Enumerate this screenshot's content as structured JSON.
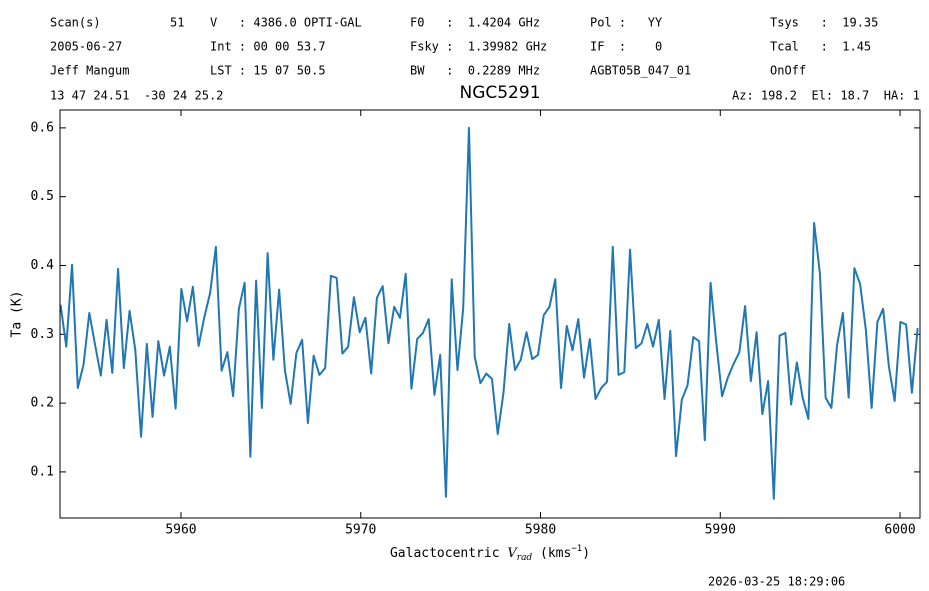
{
  "header": {
    "columns": [
      [
        "Scan(s)",
        "2005-06-27",
        "Jeff Mangum",
        "13 47 24.51  -30 24 25.2"
      ],
      [
        "51"
      ],
      [
        "V   : 4386.0 OPTI-GAL",
        "Int : 00 00 53.7",
        "LST : 15 07 50.5"
      ],
      [
        "F0   :  1.4204 GHz",
        "Fsky :  1.39982 GHz",
        "BW   :  0.2289 MHz"
      ],
      [
        "Pol :   YY",
        "IF  :    0",
        "AGBT05B_047_01"
      ],
      [
        "Tsys   :  19.35",
        "Tcal   :  1.45",
        "OnOff"
      ]
    ],
    "right": "Az: 198.2  El: 18.7  HA: 1"
  },
  "footer": {
    "timestamp": "2026-03-25 18:29:06"
  },
  "chart_data": {
    "type": "line",
    "title": "NGC5291",
    "xlabel": [
      "Galactocentric ",
      "V",
      "rad",
      " (kms",
      "−1",
      ")"
    ],
    "ylabel": "Ta (K)",
    "xlim": [
      5953.27,
      6001.11
    ],
    "ylim": [
      0.033,
      0.626
    ],
    "xticks": [
      5960,
      5970,
      5980,
      5990,
      6000
    ],
    "yticks": [
      0.1,
      0.2,
      0.3,
      0.4,
      0.5,
      0.6
    ],
    "grid": false,
    "series": [
      {
        "color": "#1f77b4",
        "x": [
          5953.3,
          5953.62,
          5953.94,
          5954.26,
          5954.58,
          5954.9,
          5955.22,
          5955.54,
          5955.86,
          5956.18,
          5956.5,
          5956.82,
          5957.14,
          5957.46,
          5957.78,
          5958.1,
          5958.42,
          5958.74,
          5959.06,
          5959.38,
          5959.7,
          5960.02,
          5960.34,
          5960.66,
          5960.98,
          5961.3,
          5961.62,
          5961.94,
          5962.26,
          5962.58,
          5962.9,
          5963.22,
          5963.54,
          5963.86,
          5964.18,
          5964.5,
          5964.82,
          5965.14,
          5965.46,
          5965.78,
          5966.1,
          5966.42,
          5966.74,
          5967.06,
          5967.38,
          5967.7,
          5968.02,
          5968.34,
          5968.66,
          5968.98,
          5969.3,
          5969.62,
          5969.94,
          5970.26,
          5970.58,
          5970.9,
          5971.22,
          5971.54,
          5971.86,
          5972.18,
          5972.5,
          5972.82,
          5973.14,
          5973.46,
          5973.78,
          5974.1,
          5974.42,
          5974.74,
          5975.06,
          5975.38,
          5975.7,
          5976.02,
          5976.34,
          5976.66,
          5976.98,
          5977.3,
          5977.62,
          5977.94,
          5978.26,
          5978.58,
          5978.9,
          5979.22,
          5979.54,
          5979.86,
          5980.18,
          5980.5,
          5980.82,
          5981.14,
          5981.46,
          5981.78,
          5982.1,
          5982.42,
          5982.74,
          5983.06,
          5983.38,
          5983.7,
          5984.02,
          5984.34,
          5984.66,
          5984.98,
          5985.3,
          5985.62,
          5985.94,
          5986.26,
          5986.58,
          5986.9,
          5987.22,
          5987.54,
          5987.86,
          5988.18,
          5988.5,
          5988.82,
          5989.14,
          5989.46,
          5989.78,
          5990.1,
          5990.42,
          5990.74,
          5991.06,
          5991.38,
          5991.7,
          5992.02,
          5992.34,
          5992.66,
          5992.98,
          5993.3,
          5993.62,
          5993.94,
          5994.26,
          5994.58,
          5994.9,
          5995.22,
          5995.54,
          5995.86,
          5996.18,
          5996.5,
          5996.82,
          5997.14,
          5997.46,
          5997.78,
          5998.1,
          5998.42,
          5998.74,
          5999.06,
          5999.38,
          5999.7,
          6000.02,
          6000.34,
          6000.66,
          6000.98
        ],
        "values": [
          0.343,
          0.282,
          0.401,
          0.222,
          0.256,
          0.331,
          0.285,
          0.24,
          0.321,
          0.244,
          0.395,
          0.251,
          0.334,
          0.277,
          0.151,
          0.286,
          0.18,
          0.29,
          0.24,
          0.282,
          0.192,
          0.366,
          0.319,
          0.369,
          0.283,
          0.325,
          0.36,
          0.427,
          0.247,
          0.274,
          0.21,
          0.337,
          0.375,
          0.122,
          0.378,
          0.193,
          0.418,
          0.263,
          0.365,
          0.248,
          0.199,
          0.273,
          0.292,
          0.171,
          0.269,
          0.241,
          0.251,
          0.385,
          0.382,
          0.272,
          0.282,
          0.354,
          0.303,
          0.324,
          0.243,
          0.353,
          0.37,
          0.287,
          0.34,
          0.324,
          0.388,
          0.221,
          0.293,
          0.302,
          0.322,
          0.212,
          0.27,
          0.064,
          0.38,
          0.248,
          0.338,
          0.6,
          0.267,
          0.229,
          0.243,
          0.235,
          0.155,
          0.215,
          0.315,
          0.248,
          0.263,
          0.303,
          0.264,
          0.27,
          0.328,
          0.34,
          0.38,
          0.222,
          0.312,
          0.277,
          0.322,
          0.237,
          0.293,
          0.206,
          0.222,
          0.231,
          0.427,
          0.241,
          0.245,
          0.423,
          0.28,
          0.287,
          0.315,
          0.282,
          0.321,
          0.206,
          0.305,
          0.123,
          0.205,
          0.226,
          0.296,
          0.29,
          0.146,
          0.375,
          0.287,
          0.21,
          0.237,
          0.257,
          0.274,
          0.341,
          0.232,
          0.303,
          0.184,
          0.232,
          0.061,
          0.298,
          0.302,
          0.198,
          0.259,
          0.208,
          0.177,
          0.462,
          0.389,
          0.208,
          0.193,
          0.285,
          0.331,
          0.208,
          0.396,
          0.373,
          0.306,
          0.193,
          0.318,
          0.337,
          0.253,
          0.203,
          0.318,
          0.314,
          0.215,
          0.309
        ]
      }
    ]
  }
}
